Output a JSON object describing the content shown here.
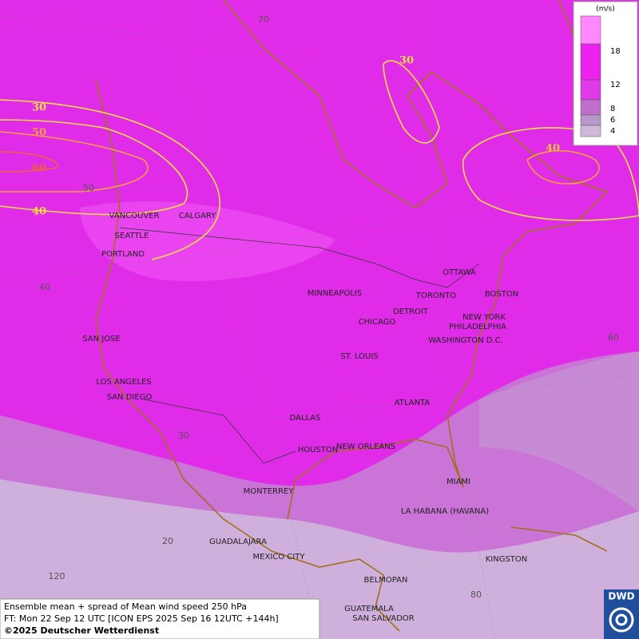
{
  "legend": {
    "unit": "(m/s)",
    "ticks": [
      "18",
      "12",
      "8",
      "6",
      "4"
    ]
  },
  "contour_labels": [
    "30",
    "50",
    "60",
    "40",
    "30",
    "40"
  ],
  "grid_labels": [
    "70",
    "60",
    "50",
    "40",
    "30",
    "20",
    "120",
    "80"
  ],
  "cities": [
    "VANCOUVER",
    "CALGARY",
    "SEATTLE",
    "PORTLAND",
    "MINNEAPOLIS",
    "TORONTO",
    "OTTAWA",
    "DETROIT",
    "CHICAGO",
    "BOSTON",
    "NEW YORK",
    "PHILADELPHIA",
    "WASHINGTON D.C.",
    "SAN JOSE",
    "ST. LOUIS",
    "LOS ANGELES",
    "SAN DIEGO",
    "ATLANTA",
    "DALLAS",
    "HOUSTON",
    "NEW ORLEANS",
    "MONTERREY",
    "MIAMI",
    "LA HABANA (HAVANA)",
    "GUADALAJARA",
    "MEXICO CITY",
    "KINGSTON",
    "BELMOPAN",
    "GUATEMALA",
    "SAN SALVADOR"
  ],
  "caption": {
    "line1": "Ensemble mean + spread of Mean wind speed 250 hPa",
    "line2": "FT: Mon 22 Sep 12 UTC [ICON EPS 2025 Sep 16 12UTC +144h]",
    "line3": "©2025 Deutscher Wetterdienst"
  },
  "logo": "DWD"
}
